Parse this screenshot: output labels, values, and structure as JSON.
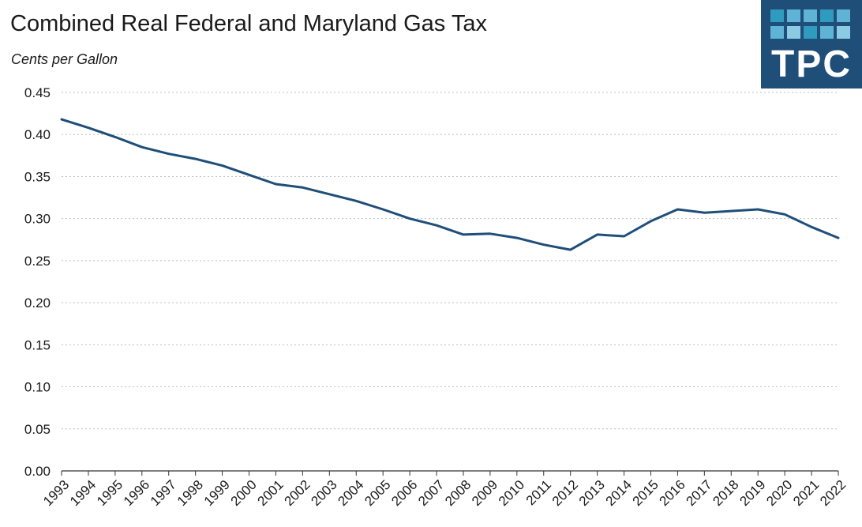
{
  "title": "Combined Real Federal and Maryland Gas Tax",
  "subtitle": "Cents per Gallon",
  "logo": {
    "text": "TPC",
    "background": "#1f4e79",
    "square_colors": [
      "#2e9bbf",
      "#5fb3d4",
      "#8ccbe2"
    ]
  },
  "colors": {
    "line": "#1f4e79",
    "grid": "#bfbfbf",
    "axis": "#333333"
  },
  "chart_data": {
    "type": "line",
    "title": "Combined Real Federal and Maryland Gas Tax",
    "ylabel": "Cents per Gallon",
    "xlabel": "",
    "ylim": [
      0,
      0.45
    ],
    "yticks": [
      "0.00",
      "0.05",
      "0.10",
      "0.15",
      "0.20",
      "0.25",
      "0.30",
      "0.35",
      "0.40",
      "0.45"
    ],
    "grid": true,
    "categories": [
      "1993",
      "1994",
      "1995",
      "1996",
      "1997",
      "1998",
      "1999",
      "2000",
      "2001",
      "2002",
      "2003",
      "2004",
      "2005",
      "2006",
      "2007",
      "2008",
      "2009",
      "2010",
      "2011",
      "2012",
      "2013",
      "2014",
      "2015",
      "2016",
      "2017",
      "2018",
      "2019",
      "2020",
      "2021",
      "2022"
    ],
    "series": [
      {
        "values": [
          0.418,
          0.408,
          0.397,
          0.385,
          0.377,
          0.371,
          0.363,
          0.352,
          0.341,
          0.337,
          0.329,
          0.321,
          0.311,
          0.3,
          0.292,
          0.281,
          0.282,
          0.277,
          0.269,
          0.263,
          0.281,
          0.279,
          0.297,
          0.311,
          0.307,
          0.309,
          0.311,
          0.305,
          0.29,
          0.277
        ]
      }
    ]
  }
}
